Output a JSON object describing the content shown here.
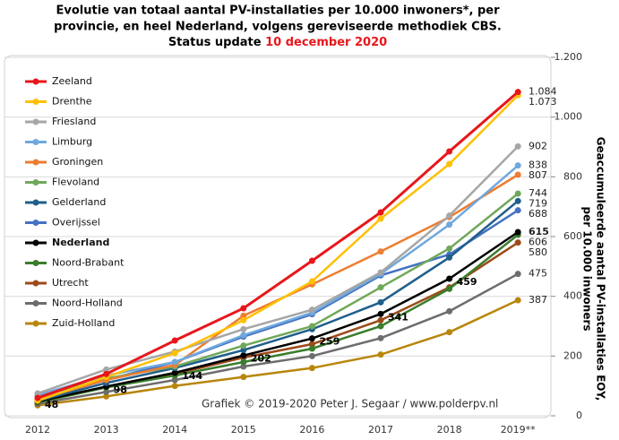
{
  "chart_data": {
    "type": "line",
    "title": [
      "Evolutie van totaal aantal PV-installaties per 10.000 inwoners*, per",
      "provincie, en heel Nederland, volgens gereviseerde methodiek CBS."
    ],
    "status_label": "Status update",
    "status_date": "10 december 2020",
    "y_label": [
      "Geaccumuleerde aantal PV-installaties EOY,",
      "per 10.000 inwoners"
    ],
    "credit": "Grafiek © 2019-2020 Peter J. Segaar / www.polderpv.nl",
    "categories": [
      "2012",
      "2013",
      "2014",
      "2015",
      "2016",
      "2017",
      "2018",
      "2019**"
    ],
    "ylim": [
      0,
      1200
    ],
    "yticks": [
      0,
      200,
      400,
      600,
      800,
      {
        "value": 1000,
        "label": "1.000"
      },
      {
        "value": 1200,
        "label": "1.200"
      }
    ],
    "grid": true,
    "legend": "upper-left",
    "series": [
      {
        "name": "Zeeland",
        "color": "#e8161b",
        "values": [
          60,
          140,
          252,
          360,
          519,
          681,
          885,
          1084
        ],
        "value_labels": [
          null,
          null,
          null,
          null,
          null,
          null,
          null,
          "1.084"
        ]
      },
      {
        "name": "Drenthe",
        "color": "#ffc000",
        "values": [
          50,
          130,
          210,
          320,
          450,
          660,
          843,
          1073
        ],
        "value_labels": [
          null,
          null,
          null,
          null,
          null,
          null,
          null,
          "1.073"
        ]
      },
      {
        "name": "Friesland",
        "color": "#a6a6a6",
        "values": [
          75,
          155,
          215,
          290,
          355,
          480,
          670,
          902
        ],
        "value_labels": [
          null,
          null,
          null,
          null,
          null,
          null,
          null,
          "902"
        ]
      },
      {
        "name": "Limburg",
        "color": "#6fa8dc",
        "values": [
          70,
          135,
          180,
          270,
          345,
          475,
          640,
          838
        ],
        "value_labels": [
          null,
          null,
          null,
          null,
          null,
          null,
          null,
          "838"
        ]
      },
      {
        "name": "Groningen",
        "color": "#ed7d31",
        "values": [
          55,
          120,
          170,
          335,
          440,
          550,
          665,
          807
        ],
        "value_labels": [
          null,
          null,
          null,
          null,
          null,
          null,
          null,
          "807"
        ]
      },
      {
        "name": "Flevoland",
        "color": "#70a85a",
        "values": [
          65,
          125,
          165,
          235,
          300,
          430,
          560,
          744
        ],
        "value_labels": [
          null,
          null,
          null,
          null,
          null,
          null,
          null,
          "744"
        ]
      },
      {
        "name": "Gelderland",
        "color": "#1f5f8b",
        "values": [
          50,
          110,
          160,
          220,
          290,
          380,
          530,
          719
        ],
        "value_labels": [
          null,
          null,
          null,
          null,
          null,
          null,
          null,
          "719"
        ]
      },
      {
        "name": "Overijssel",
        "color": "#4472c4",
        "values": [
          55,
          120,
          180,
          265,
          340,
          470,
          540,
          688
        ],
        "value_labels": [
          null,
          null,
          null,
          null,
          null,
          null,
          null,
          "688"
        ]
      },
      {
        "name": "Nederland",
        "color": "#000000",
        "values": [
          48,
          98,
          144,
          202,
          259,
          341,
          459,
          615
        ],
        "value_labels": [
          "48",
          "98",
          "144",
          "202",
          "259",
          "341",
          "459",
          "615"
        ]
      },
      {
        "name": "Noord-Brabant",
        "color": "#3a7d2c",
        "values": [
          45,
          95,
          135,
          180,
          225,
          300,
          425,
          606
        ],
        "value_labels": [
          null,
          null,
          null,
          null,
          null,
          null,
          null,
          "606"
        ]
      },
      {
        "name": "Utrecht",
        "color": "#9c4a1a",
        "values": [
          45,
          95,
          140,
          195,
          240,
          320,
          430,
          580
        ],
        "value_labels": [
          null,
          null,
          null,
          null,
          null,
          null,
          null,
          "580"
        ]
      },
      {
        "name": "Noord-Holland",
        "color": "#6d6d6d",
        "values": [
          40,
          80,
          120,
          165,
          200,
          260,
          350,
          475
        ],
        "value_labels": [
          null,
          null,
          null,
          null,
          null,
          null,
          null,
          "475"
        ]
      },
      {
        "name": "Zuid-Holland",
        "color": "#b8860b",
        "values": [
          35,
          65,
          100,
          130,
          160,
          205,
          280,
          387
        ],
        "value_labels": [
          null,
          null,
          null,
          null,
          null,
          null,
          null,
          "387"
        ]
      }
    ]
  }
}
